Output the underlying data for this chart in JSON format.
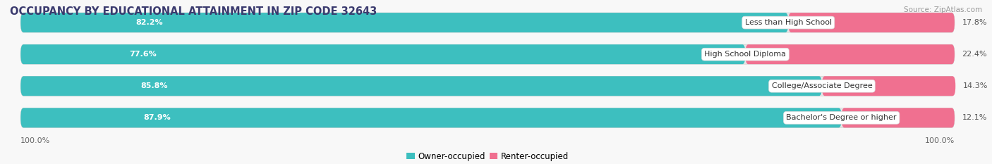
{
  "title": "OCCUPANCY BY EDUCATIONAL ATTAINMENT IN ZIP CODE 32643",
  "source": "Source: ZipAtlas.com",
  "categories": [
    "Less than High School",
    "High School Diploma",
    "College/Associate Degree",
    "Bachelor's Degree or higher"
  ],
  "owner_pct": [
    82.2,
    77.6,
    85.8,
    87.9
  ],
  "renter_pct": [
    17.8,
    22.4,
    14.3,
    12.1
  ],
  "owner_color": "#3DBFBF",
  "renter_color": "#F07090",
  "row_bg_color": "#e8e8e8",
  "background_color": "#f8f8f8",
  "title_color": "#3a3a6e",
  "title_fontsize": 10.5,
  "source_fontsize": 7.5,
  "label_fontsize": 8,
  "pct_fontsize": 8,
  "legend_fontsize": 8.5,
  "axis_label_fontsize": 8,
  "left_axis_label": "100.0%",
  "right_axis_label": "100.0%"
}
